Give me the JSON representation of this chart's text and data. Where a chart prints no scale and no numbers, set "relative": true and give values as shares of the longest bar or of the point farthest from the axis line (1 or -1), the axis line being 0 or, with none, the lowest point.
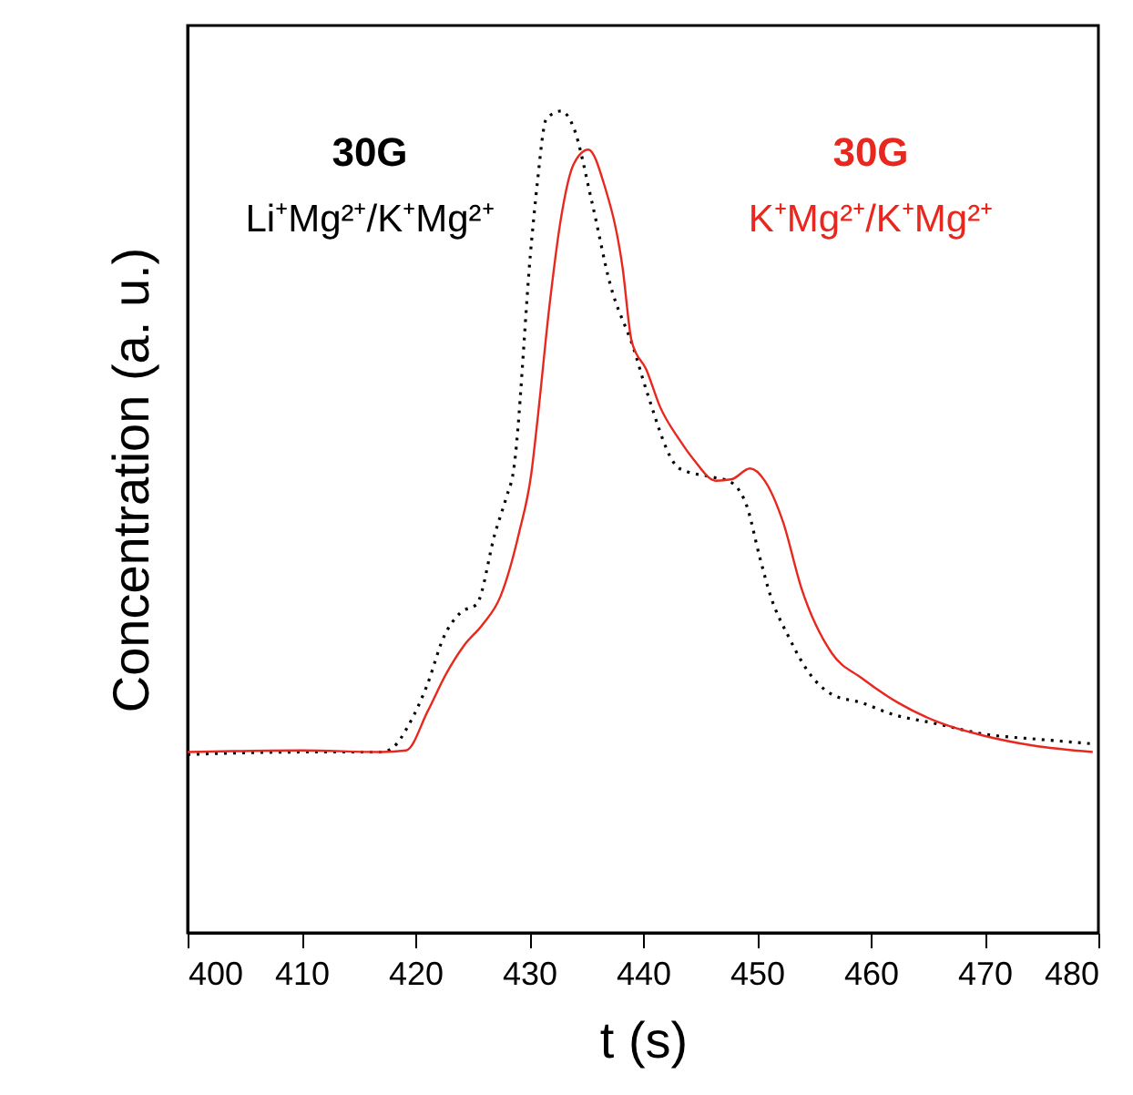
{
  "chart_data": {
    "type": "line",
    "xlabel": "t (s)",
    "ylabel": "Concentration (a. u.)",
    "relative": true,
    "xlim": [
      400,
      480
    ],
    "xticks": [
      400,
      410,
      420,
      430,
      440,
      450,
      460,
      470,
      480
    ],
    "grid": false,
    "marker": "none",
    "series": [
      {
        "name": "30G\nLi⁺Mg²⁺/K⁺Mg²⁺",
        "color": "#000000",
        "line_style": "dotted",
        "x": [
          400,
          410,
          417,
          418,
          419.5,
          421,
          422.5,
          424,
          425.4,
          427,
          428,
          428.6,
          430.2,
          430.7,
          431.5,
          432.8,
          433.9,
          435.5,
          437.1,
          439.2,
          440.3,
          443.2,
          445.9,
          447.5,
          449.1,
          450.2,
          451.2,
          452.8,
          454.4,
          456.6,
          459.2,
          461.9,
          465.6,
          469.9,
          475.2,
          479.5
        ],
        "values": [
          0.217,
          0.22,
          0.22,
          0.225,
          0.255,
          0.3,
          0.36,
          0.39,
          0.4,
          0.486,
          0.53,
          0.56,
          0.84,
          0.91,
          0.99,
          1.0,
          0.98,
          0.89,
          0.79,
          0.71,
          0.66,
          0.565,
          0.555,
          0.55,
          0.52,
          0.46,
          0.41,
          0.36,
          0.32,
          0.29,
          0.28,
          0.266,
          0.255,
          0.242,
          0.235,
          0.23
        ]
      },
      {
        "name": "30G\nK⁺Mg²⁺/K⁺Mg²⁺",
        "color": "#e8281e",
        "line_style": "solid",
        "x": [
          400,
          410,
          417,
          419.2,
          421.1,
          422.7,
          424.3,
          425.9,
          427.5,
          429.1,
          430.2,
          430.7,
          431.8,
          432.8,
          433.9,
          435.2,
          436.6,
          438.2,
          439,
          440.3,
          441.5,
          443.2,
          444.5,
          446.4,
          447.8,
          449.4,
          450.7,
          452.3,
          453.9,
          456.6,
          459.2,
          462.4,
          466.2,
          469.9,
          474.2,
          479.5
        ],
        "values": [
          0.22,
          0.222,
          0.22,
          0.222,
          0.27,
          0.315,
          0.35,
          0.375,
          0.41,
          0.486,
          0.56,
          0.62,
          0.765,
          0.87,
          0.935,
          0.953,
          0.91,
          0.81,
          0.72,
          0.685,
          0.64,
          0.6,
          0.575,
          0.55,
          0.552,
          0.565,
          0.55,
          0.5,
          0.42,
          0.34,
          0.31,
          0.28,
          0.255,
          0.24,
          0.228,
          0.22
        ]
      }
    ]
  }
}
